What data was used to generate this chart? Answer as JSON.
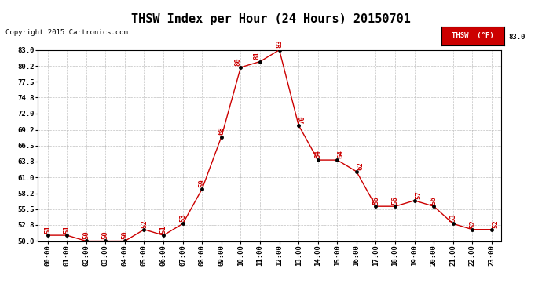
{
  "title": "THSW Index per Hour (24 Hours) 20150701",
  "copyright": "Copyright 2015 Cartronics.com",
  "legend_label": "THSW  (°F)",
  "hours": [
    0,
    1,
    2,
    3,
    4,
    5,
    6,
    7,
    8,
    9,
    10,
    11,
    12,
    13,
    14,
    15,
    16,
    17,
    18,
    19,
    20,
    21,
    22,
    23
  ],
  "values": [
    51,
    51,
    50,
    50,
    50,
    52,
    51,
    53,
    59,
    68,
    80,
    81,
    83,
    70,
    64,
    64,
    62,
    56,
    56,
    57,
    56,
    53,
    52,
    52
  ],
  "ylim": [
    50.0,
    83.0
  ],
  "yticks": [
    50.0,
    52.8,
    55.5,
    58.2,
    61.0,
    63.8,
    66.5,
    69.2,
    72.0,
    74.8,
    77.5,
    80.2,
    83.0
  ],
  "line_color": "#cc0000",
  "marker_color": "#000000",
  "label_color": "#cc0000",
  "bg_color": "#ffffff",
  "grid_color": "#b0b0b0",
  "title_fontsize": 11,
  "copyright_fontsize": 6.5,
  "label_fontsize": 6.5,
  "tick_fontsize": 6.5,
  "legend_bg": "#cc0000",
  "legend_text_color": "#ffffff",
  "label_offsets_x": [
    0,
    0,
    0,
    0,
    0,
    0,
    0,
    0,
    0,
    0,
    -0.15,
    -0.15,
    0,
    0.2,
    0,
    0.2,
    0.2,
    0,
    0,
    0.2,
    0,
    0,
    0,
    0.2
  ],
  "label_offsets_y": [
    0.3,
    0.3,
    0.3,
    0.3,
    0.3,
    0.3,
    0.3,
    0.3,
    0.3,
    0.3,
    0.3,
    0.3,
    0.4,
    0.3,
    0.3,
    0.3,
    0.3,
    0.3,
    0.3,
    0.3,
    0.3,
    0.3,
    0.3,
    0.3
  ]
}
